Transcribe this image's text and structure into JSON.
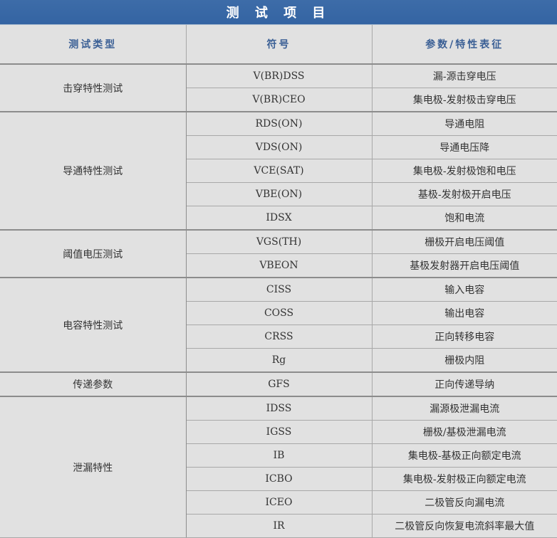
{
  "title": "测 试 项 目",
  "headers": [
    "测试类型",
    "符号",
    "参数/特性表征"
  ],
  "groups": [
    {
      "type": "击穿特性测试",
      "rows": [
        [
          "V(BR)DSS",
          "漏-源击穿电压"
        ],
        [
          "V(BR)CEO",
          "集电极-发射极击穿电压"
        ]
      ]
    },
    {
      "type": "导通特性测试",
      "rows": [
        [
          "RDS(ON)",
          "导通电阻"
        ],
        [
          "VDS(ON)",
          "导通电压降"
        ],
        [
          "VCE(SAT)",
          "集电极-发射极饱和电压"
        ],
        [
          "VBE(ON)",
          "基极-发射极开启电压"
        ],
        [
          "IDSX",
          "饱和电流"
        ]
      ]
    },
    {
      "type": "阈值电压测试",
      "rows": [
        [
          "VGS(TH)",
          "栅极开启电压阈值"
        ],
        [
          "VBEON",
          "基极发射器开启电压阈值"
        ]
      ]
    },
    {
      "type": "电容特性测试",
      "rows": [
        [
          "CISS",
          "输入电容"
        ],
        [
          "COSS",
          "输出电容"
        ],
        [
          "CRSS",
          "正向转移电容"
        ],
        [
          "Rg",
          "栅极内阻"
        ]
      ]
    },
    {
      "type": "传递参数",
      "rows": [
        [
          "GFS",
          "正向传递导纳"
        ]
      ]
    },
    {
      "type": "泄漏特性",
      "rows": [
        [
          "IDSS",
          "漏源极泄漏电流"
        ],
        [
          "IGSS",
          "栅极/基极泄漏电流"
        ],
        [
          "IB",
          "集电极-基极正向额定电流"
        ],
        [
          "ICBO",
          "集电极-发射极正向额定电流"
        ],
        [
          "ICEO",
          "二极管反向漏电流"
        ],
        [
          "IR",
          "二极管反向恢复电流斜率最大值"
        ]
      ]
    }
  ]
}
